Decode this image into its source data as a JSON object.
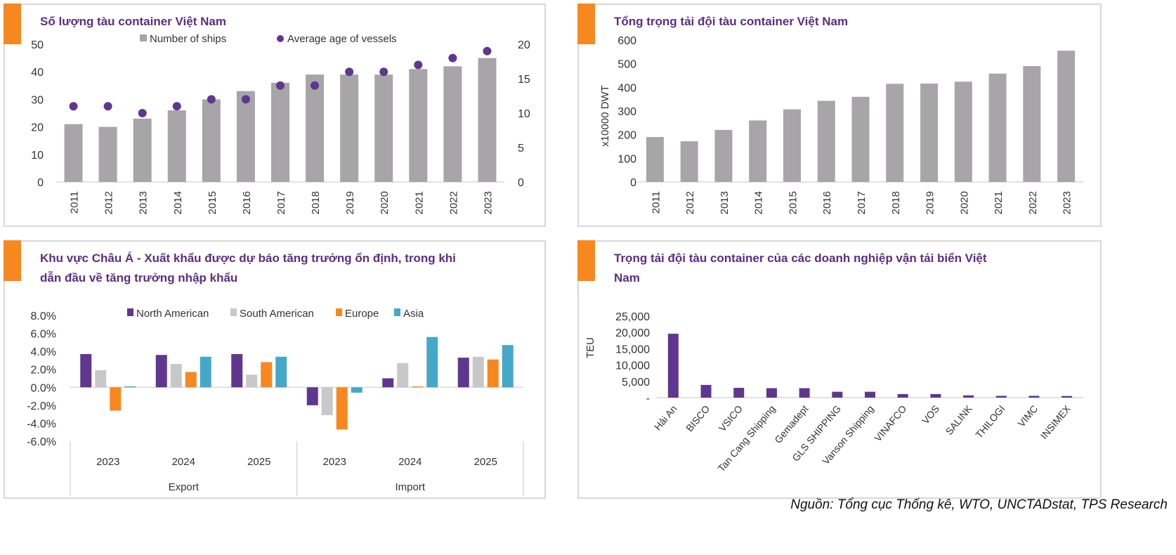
{
  "colors": {
    "title": "#5b2d86",
    "accent": "#f7881f",
    "gray_bar": "#a7a5a8",
    "purple": "#5f3790",
    "light_gray": "#c8c7c9",
    "orange": "#f7881f",
    "teal": "#45a8c9"
  },
  "source": "Nguồn: Tổng cục Thống kê, WTO, UNCTADstat, TPS Research",
  "chart_data": [
    {
      "type": "bar+scatter",
      "title": "Số lượng tàu container Việt Nam",
      "categories": [
        "2011",
        "2012",
        "2013",
        "2014",
        "2015",
        "2016",
        "2017",
        "2018",
        "2019",
        "2020",
        "2021",
        "2022",
        "2023"
      ],
      "series": [
        {
          "name": "Number of ships",
          "type": "bar",
          "axis": "left",
          "values": [
            21,
            20,
            23,
            26,
            30,
            33,
            36,
            39,
            39,
            39,
            41,
            42,
            45
          ]
        },
        {
          "name": "Average age of vessels",
          "type": "scatter",
          "axis": "right",
          "values": [
            11,
            11,
            10,
            11,
            12,
            12,
            14,
            14,
            16,
            16,
            17,
            18,
            19
          ]
        }
      ],
      "ylim": [
        0,
        50
      ],
      "yticks": [
        "0",
        "10",
        "20",
        "30",
        "40",
        "50"
      ],
      "y2lim": [
        0,
        20
      ],
      "y2ticks": [
        "0",
        "5",
        "10",
        "15",
        "20"
      ],
      "legend": "top",
      "grid": false
    },
    {
      "type": "bar",
      "title": "Tổng trọng tải đội tàu container Việt Nam",
      "categories": [
        "2011",
        "2012",
        "2013",
        "2014",
        "2015",
        "2016",
        "2017",
        "2018",
        "2019",
        "2020",
        "2021",
        "2022",
        "2023"
      ],
      "values": [
        190,
        172,
        220,
        260,
        307,
        343,
        360,
        415,
        416,
        424,
        458,
        490,
        555
      ],
      "ylabel": "x10000 DWT",
      "ylim": [
        0,
        600
      ],
      "yticks": [
        "0",
        "100",
        "200",
        "300",
        "400",
        "500",
        "600"
      ],
      "grid": false
    },
    {
      "type": "bar",
      "title": "Khu vực Châu Á - Xuất khẩu được dự báo tăng trưởng ổn định, trong khi dẫn đầu về tăng trưởng nhập khẩu",
      "groups": [
        {
          "label": "Export",
          "categories": [
            "2023",
            "2024",
            "2025"
          ]
        },
        {
          "label": "Import",
          "categories": [
            "2023",
            "2024",
            "2025"
          ]
        }
      ],
      "series": [
        {
          "name": "North American",
          "values": [
            3.7,
            3.6,
            3.7,
            -2.0,
            1.0,
            3.3
          ]
        },
        {
          "name": "South American",
          "values": [
            1.9,
            2.6,
            1.4,
            -3.1,
            2.7,
            3.4
          ]
        },
        {
          "name": "Europe",
          "values": [
            -2.6,
            1.7,
            2.8,
            -4.7,
            0.1,
            3.1
          ]
        },
        {
          "name": "Asia",
          "values": [
            0.1,
            3.4,
            3.4,
            -0.6,
            5.6,
            4.7
          ]
        }
      ],
      "ylim": [
        -6,
        8
      ],
      "yticks": [
        "-6.0%",
        "-4.0%",
        "-2.0%",
        "0.0%",
        "2.0%",
        "4.0%",
        "6.0%",
        "8.0%"
      ],
      "legend": "top",
      "grid": false
    },
    {
      "type": "bar",
      "title": "Trọng tải đội tàu container của các doanh nghiệp vận tải biển Việt Nam",
      "categories": [
        "Hải An",
        "BISCO",
        "VSICO",
        "Tan Cang Shipping",
        "Gemadept",
        "GLS SHIPPING",
        "Vanson Shipping",
        "VINAFCO",
        "VOS",
        "SALINK",
        "THILOGI",
        "VIMC",
        "INSIMEX"
      ],
      "values": [
        19600,
        3900,
        3000,
        2900,
        2900,
        1800,
        1800,
        1100,
        1100,
        700,
        550,
        550,
        500
      ],
      "ylabel": "TEU",
      "ylim": [
        0,
        25000
      ],
      "yticks": [
        "-",
        "5,000",
        "10,000",
        "15,000",
        "20,000",
        "25,000"
      ],
      "grid": false
    }
  ]
}
